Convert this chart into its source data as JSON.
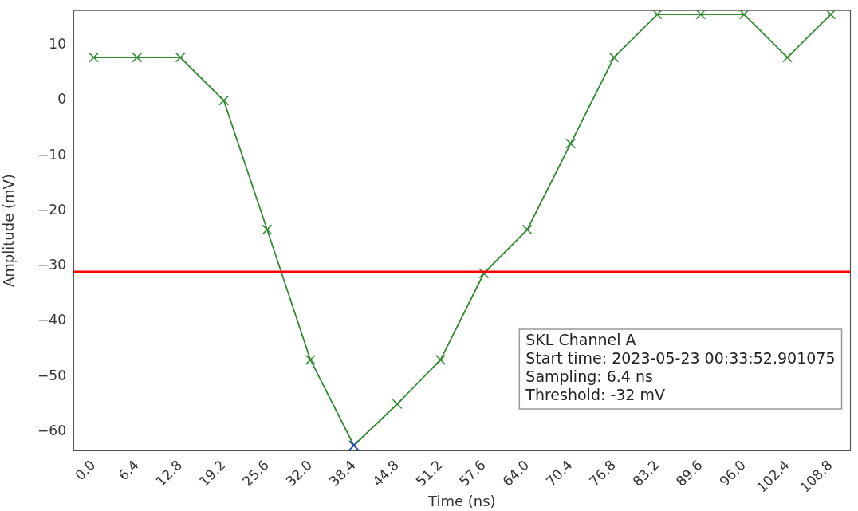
{
  "chart_data": {
    "type": "line",
    "xlabel": "Time (ns)",
    "ylabel": "Amplitude (mV)",
    "series": [
      {
        "type": "line",
        "color": "#2e8b2e",
        "marker": "cross",
        "x": [
          0,
          6.4,
          12.8,
          19.2,
          25.6,
          32,
          38.4,
          44.8,
          51.2,
          57.6,
          64,
          70.4,
          76.8,
          83.2,
          89.6,
          96,
          102.4,
          108.8
        ],
        "values": [
          7.8,
          7.8,
          7.8,
          0,
          -23.4,
          -47,
          -62.5,
          -55,
          -47,
          -31.3,
          -23.4,
          -7.8,
          7.8,
          15.6,
          15.6,
          15.6,
          7.8,
          15.6
        ]
      },
      {
        "type": "scatter",
        "color": "#2040d0",
        "marker": "cross",
        "x": [
          38.4
        ],
        "values": [
          -62.5
        ]
      }
    ],
    "xlim": [
      -3,
      111.7
    ],
    "xticks": [
      {
        "value": 0,
        "label": "0.0"
      },
      6.4,
      12.8,
      19.2,
      25.6,
      {
        "value": 32,
        "label": "32.0"
      },
      38.4,
      44.8,
      51.2,
      57.6,
      {
        "value": 64,
        "label": "64.0"
      },
      70.4,
      76.8,
      83.2,
      89.6,
      {
        "value": 96,
        "label": "96.0"
      },
      102.4,
      108.8
    ],
    "ylim": [
      -63.4,
      16.3
    ],
    "yticks": [
      -60,
      -50,
      -40,
      -30,
      -20,
      -10,
      0,
      10
    ],
    "ref_lines": [
      {
        "axis": "y",
        "value": -31,
        "color": "#ff0000"
      }
    ],
    "annotations": [
      "SKL Channel A",
      "Start time: 2023-05-23 00:33:52.901075",
      "Sampling: 6.4 ns",
      "Threshold: -32 mV"
    ],
    "grid": false,
    "legend": false
  }
}
